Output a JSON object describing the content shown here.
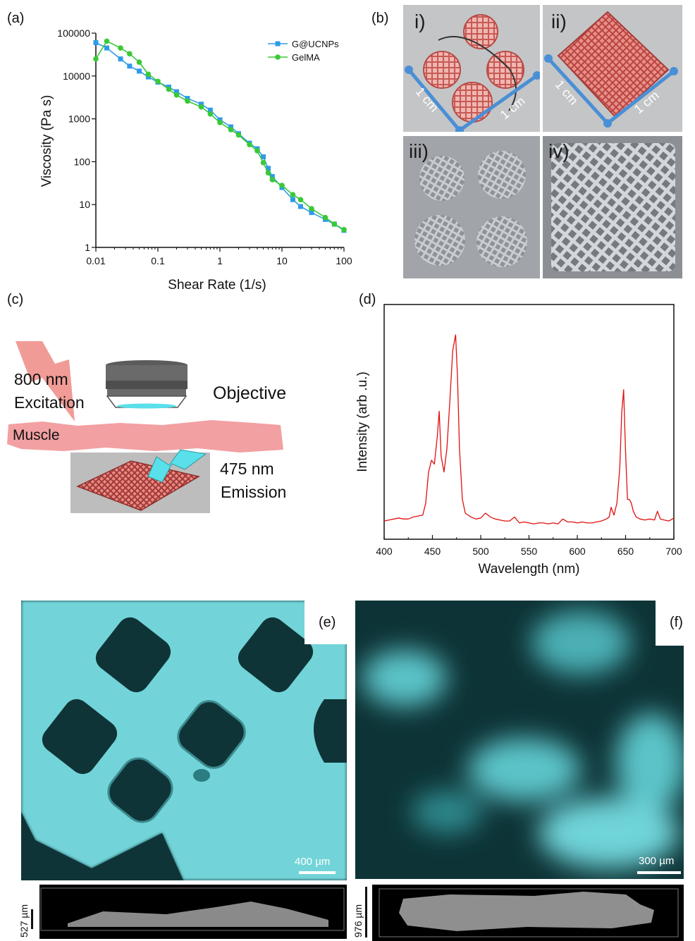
{
  "panel_labels": {
    "a": "(a)",
    "b": "(b)",
    "c": "(c)",
    "d": "(d)",
    "e": "(e)",
    "f": "(f)"
  },
  "panel_a": {
    "legend": [
      "G@UCNPs",
      "GelMA"
    ],
    "colors": {
      "g_ucnps": "#2f9be8",
      "gelma": "#39c936"
    }
  },
  "panel_b": {
    "labels": [
      "i)",
      "ii)",
      "iii)",
      "iv)"
    ],
    "scale": "1 cm",
    "accent": "#4a8fd6"
  },
  "panel_c": {
    "excitation_wavelength": "800 nm",
    "excitation": "Excitation",
    "objective": "Objective",
    "muscle": "Muscle",
    "emission_wavelength": "475 nm",
    "emission": "Emission"
  },
  "panel_e": {
    "scalebar": "400 µm",
    "depth": "527 µm"
  },
  "panel_f": {
    "scalebar": "300 µm",
    "depth": "976 µm"
  },
  "chart_data": [
    {
      "type": "line",
      "xlabel": "Shear Rate (1/s)",
      "ylabel": "Viscosity (Pa s)",
      "x_scale": "log",
      "y_scale": "log",
      "xlim": [
        0.01,
        100
      ],
      "ylim": [
        1,
        100000
      ],
      "x_ticks": [
        "0.01",
        "0.1",
        "1",
        "10",
        "100"
      ],
      "y_ticks": [
        "1",
        "10",
        "100",
        "1000",
        "10000",
        "100000"
      ],
      "legend_position": "top-right",
      "series": [
        {
          "name": "G@UCNPs",
          "color": "#2f9be8",
          "x": [
            0.01,
            0.015,
            0.025,
            0.035,
            0.05,
            0.07,
            0.1,
            0.15,
            0.2,
            0.3,
            0.5,
            0.7,
            1,
            1.5,
            2,
            3,
            4,
            5,
            6,
            7,
            10,
            15,
            20,
            30,
            50,
            70,
            100
          ],
          "y": [
            60000,
            45000,
            25000,
            17000,
            13000,
            9500,
            7200,
            5500,
            4300,
            3000,
            2200,
            1600,
            950,
            650,
            450,
            270,
            200,
            130,
            70,
            45,
            25,
            13,
            9,
            6.5,
            4.5,
            3.5,
            2.5
          ]
        },
        {
          "name": "GelMA",
          "color": "#39c936",
          "x": [
            0.01,
            0.015,
            0.025,
            0.035,
            0.05,
            0.07,
            0.1,
            0.15,
            0.2,
            0.3,
            0.5,
            0.7,
            1,
            1.5,
            2,
            3,
            4,
            5,
            6,
            7,
            10,
            15,
            20,
            30,
            50,
            70,
            100
          ],
          "y": [
            25000,
            65000,
            45000,
            33000,
            21000,
            11000,
            7500,
            4900,
            3600,
            2600,
            1900,
            1300,
            820,
            560,
            420,
            250,
            180,
            95,
            55,
            38,
            28,
            17,
            13,
            8,
            5,
            3.5,
            2.6
          ]
        }
      ]
    },
    {
      "type": "line",
      "xlabel": "Wavelength (nm)",
      "ylabel": "Intensity (arb .u.)",
      "xlim": [
        400,
        700
      ],
      "x_ticks": [
        "400",
        "450",
        "500",
        "550",
        "600",
        "650",
        "700"
      ],
      "y_ticks_shown": false,
      "series": [
        {
          "color": "#e01010",
          "x": [
            400,
            405,
            410,
            415,
            420,
            425,
            430,
            435,
            440,
            443,
            446,
            449,
            452,
            455,
            457,
            459,
            462,
            465,
            468,
            471,
            474,
            476,
            478,
            481,
            484,
            487,
            490,
            495,
            500,
            505,
            510,
            515,
            520,
            525,
            530,
            535,
            540,
            545,
            550,
            555,
            560,
            565,
            570,
            575,
            580,
            585,
            590,
            595,
            600,
            605,
            610,
            615,
            620,
            625,
            630,
            633,
            635,
            638,
            641,
            644,
            646,
            648,
            650,
            652,
            654,
            656,
            658,
            661,
            665,
            670,
            675,
            680,
            683,
            686,
            690,
            695,
            700
          ],
          "y": [
            0.05,
            0.055,
            0.06,
            0.065,
            0.06,
            0.06,
            0.07,
            0.075,
            0.08,
            0.14,
            0.3,
            0.36,
            0.34,
            0.48,
            0.61,
            0.38,
            0.3,
            0.42,
            0.66,
            0.92,
            1.0,
            0.78,
            0.42,
            0.16,
            0.09,
            0.08,
            0.07,
            0.06,
            0.065,
            0.09,
            0.07,
            0.06,
            0.055,
            0.05,
            0.05,
            0.07,
            0.04,
            0.045,
            0.04,
            0.035,
            0.04,
            0.04,
            0.035,
            0.04,
            0.035,
            0.06,
            0.045,
            0.045,
            0.04,
            0.045,
            0.04,
            0.04,
            0.045,
            0.05,
            0.06,
            0.07,
            0.12,
            0.08,
            0.14,
            0.32,
            0.6,
            0.72,
            0.4,
            0.16,
            0.16,
            0.14,
            0.1,
            0.07,
            0.06,
            0.055,
            0.06,
            0.055,
            0.1,
            0.06,
            0.055,
            0.05,
            0.065
          ]
        }
      ]
    }
  ]
}
